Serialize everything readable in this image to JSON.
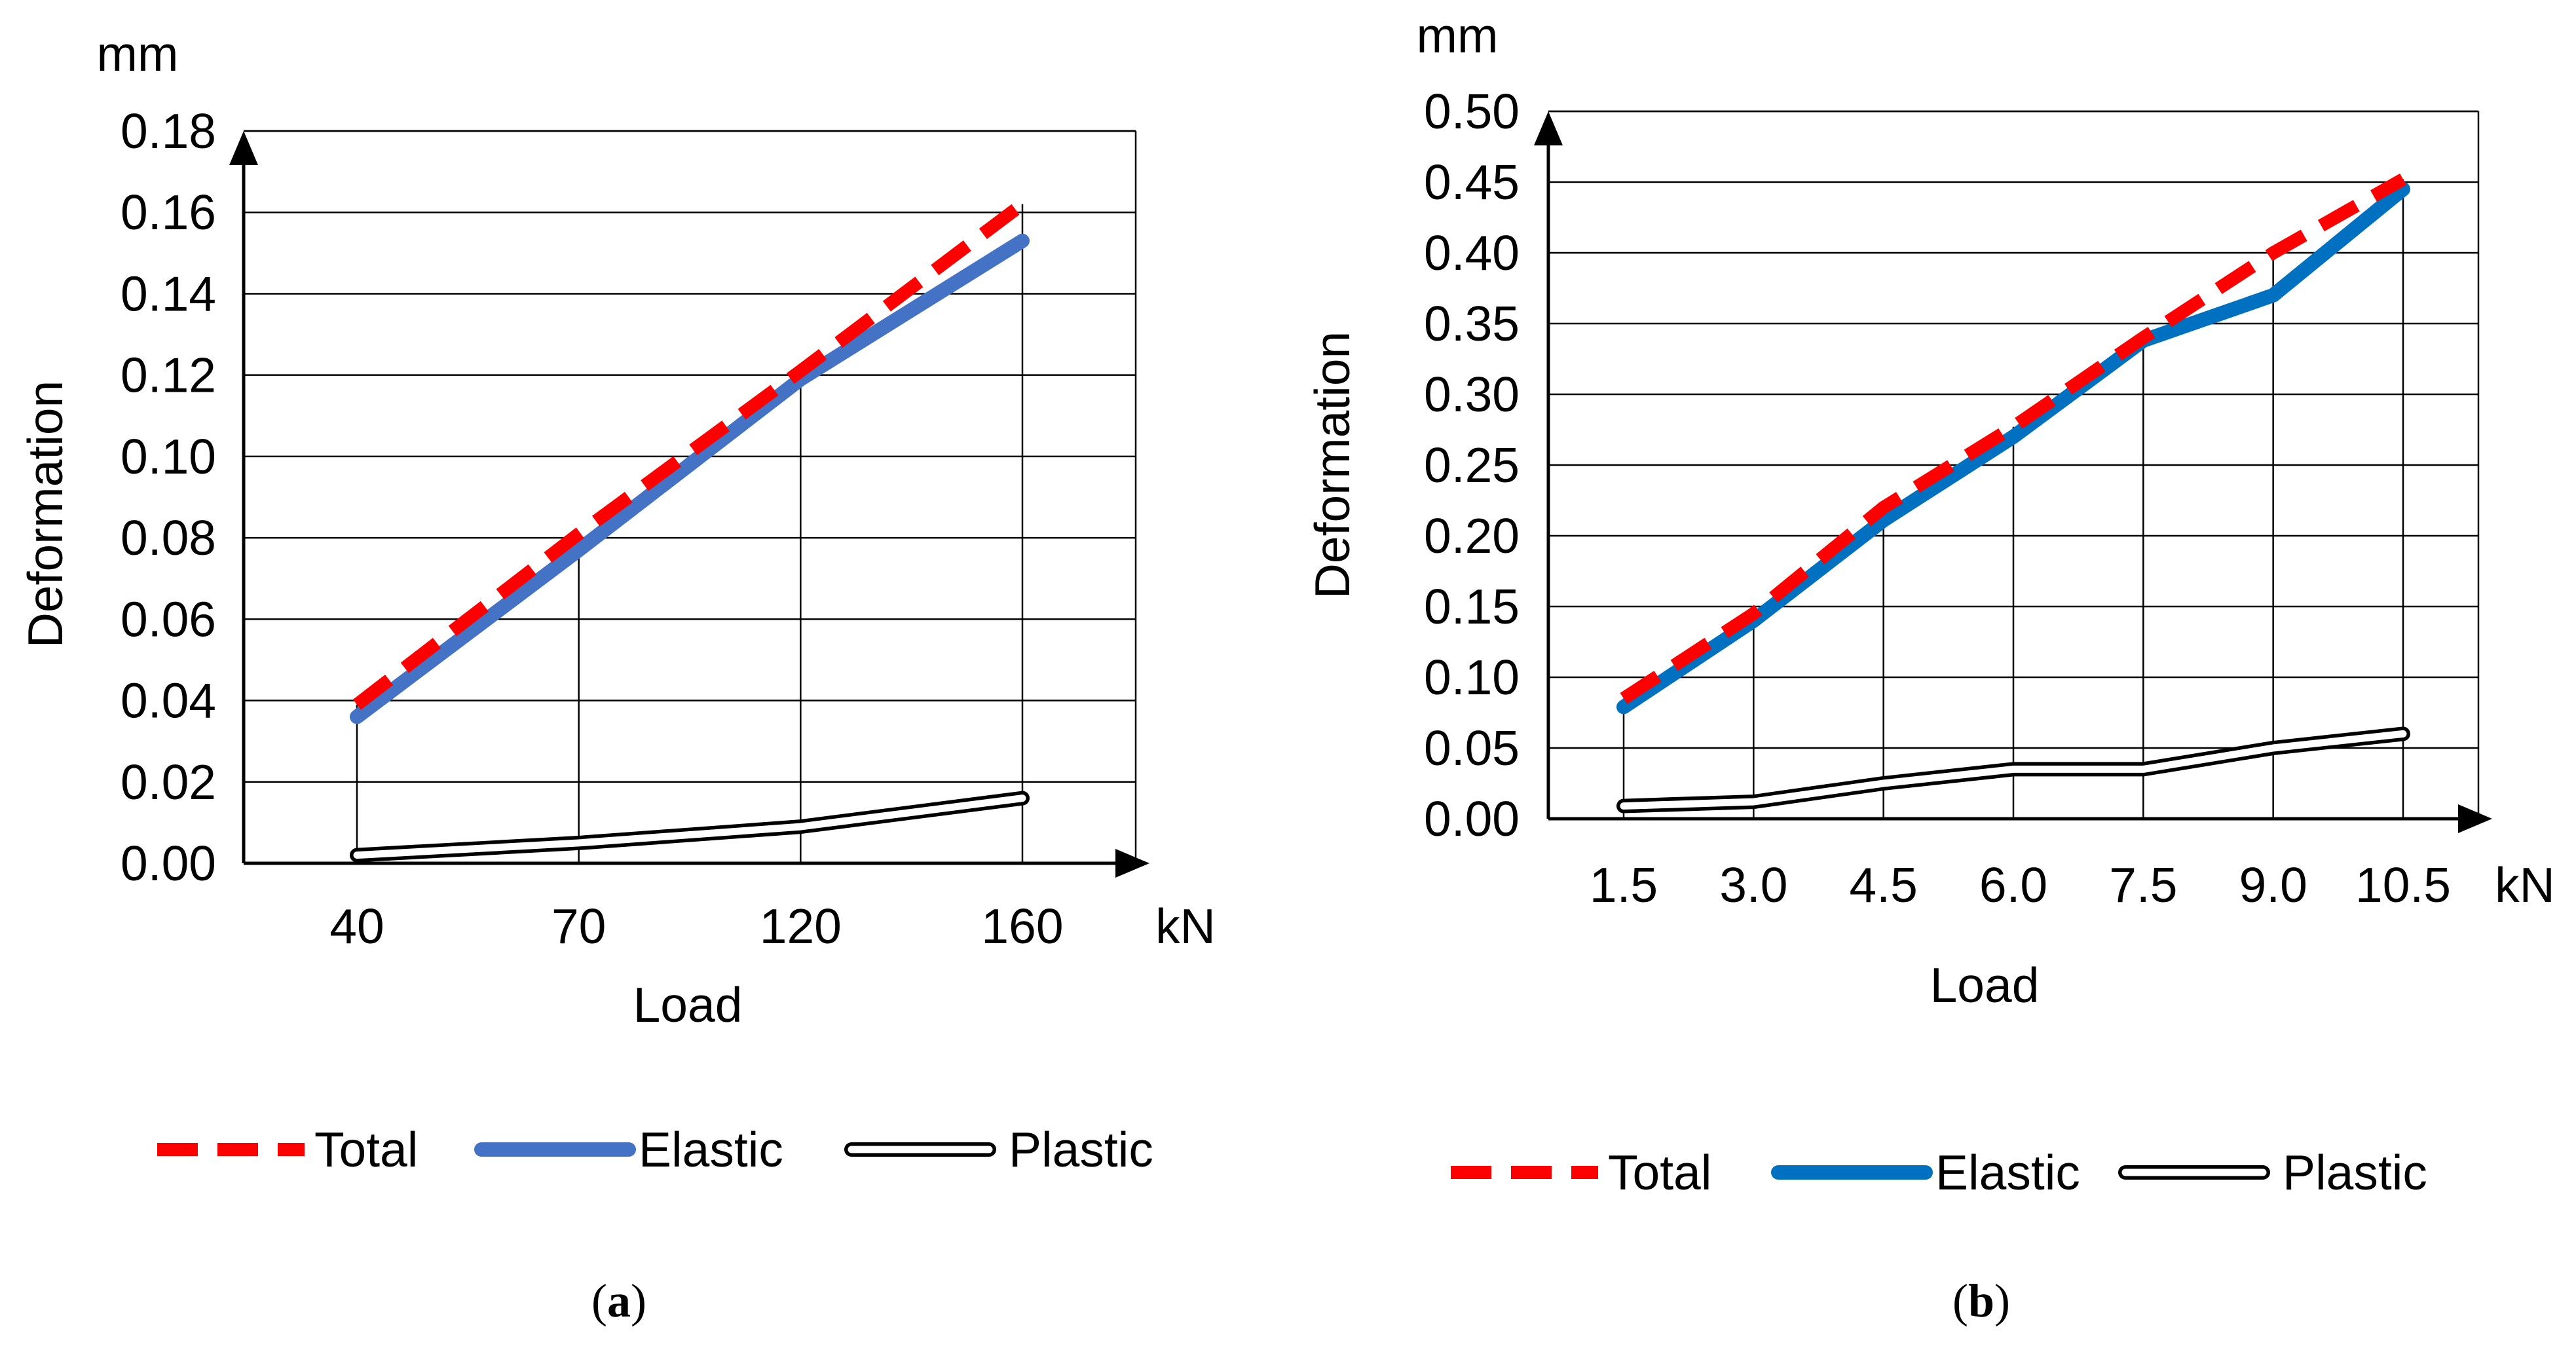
{
  "chart_data": [
    {
      "type": "line",
      "panel_label": "a",
      "xlabel": "Load",
      "ylabel": "Deformation",
      "x_unit": "kN",
      "y_unit": "mm",
      "categories": [
        "40",
        "70",
        "120",
        "160"
      ],
      "ylim": [
        0,
        0.18
      ],
      "y_ticks": [
        "0.00",
        "0.02",
        "0.04",
        "0.06",
        "0.08",
        "0.10",
        "0.12",
        "0.14",
        "0.16",
        "0.18"
      ],
      "grid": true,
      "legend_position": "bottom",
      "series": [
        {
          "name": "Total",
          "color": "#ff0000",
          "style": "dashed",
          "values": [
            0.039,
            0.081,
            0.121,
            0.162
          ]
        },
        {
          "name": "Elastic",
          "color": "#4472c4",
          "style": "solid",
          "values": [
            0.036,
            0.077,
            0.119,
            0.153
          ]
        },
        {
          "name": "Plastic",
          "color": "#000000",
          "style": "double",
          "values": [
            0.002,
            0.005,
            0.009,
            0.016
          ]
        }
      ]
    },
    {
      "type": "line",
      "panel_label": "b",
      "xlabel": "Load",
      "ylabel": "Deformation",
      "x_unit": "kN",
      "y_unit": "mm",
      "categories": [
        "1.5",
        "3.0",
        "4.5",
        "6.0",
        "7.5",
        "9.0",
        "10.5"
      ],
      "ylim": [
        0,
        0.5
      ],
      "y_ticks": [
        "0.00",
        "0.05",
        "0.10",
        "0.15",
        "0.20",
        "0.25",
        "0.30",
        "0.35",
        "0.40",
        "0.45",
        "0.50"
      ],
      "grid": true,
      "legend_position": "bottom",
      "series": [
        {
          "name": "Total",
          "color": "#ff0000",
          "style": "dashed",
          "values": [
            0.085,
            0.145,
            0.22,
            0.277,
            0.34,
            0.4,
            0.452
          ]
        },
        {
          "name": "Elastic",
          "color": "#0070c0",
          "style": "solid",
          "values": [
            0.079,
            0.14,
            0.211,
            0.27,
            0.338,
            0.37,
            0.445
          ]
        },
        {
          "name": "Plastic",
          "color": "#000000",
          "style": "double",
          "values": [
            0.009,
            0.012,
            0.025,
            0.035,
            0.035,
            0.05,
            0.06
          ]
        }
      ]
    }
  ]
}
